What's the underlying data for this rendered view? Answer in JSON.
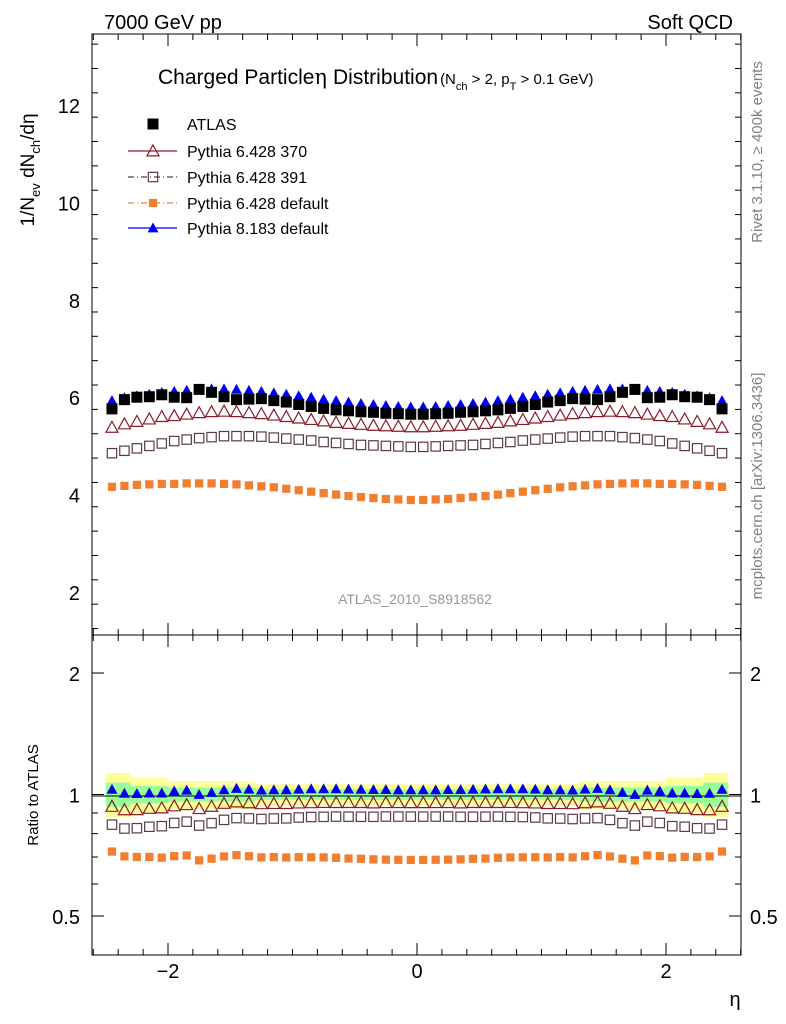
{
  "header": {
    "left": "7000 GeV pp",
    "right": "Soft QCD"
  },
  "chart_data": {
    "type": "scatter",
    "title": "Charged Particle",
    "title_symbol": "η",
    "title_word": "Distribution",
    "title_cuts": {
      "open": "(N",
      "nch_sub": "ch",
      "mid": " > 2, p",
      "pt_sub": "T",
      "close": " > 0.1 GeV)"
    },
    "ylabel": {
      "prefix": "1/N",
      "ev_sub": "ev",
      "mid": " dN",
      "ch_sub": "ch",
      "suffix": "/dη"
    },
    "xlabel": "η",
    "ratio_ylabel": "Ratio to ATLAS",
    "analysis_label": "ATLAS_2010_S8918562",
    "side_label_top": "Rivet 3.1.10, ≥ 400k events",
    "side_label_bottom": "mcplots.cern.ch [arXiv:1306.3436]",
    "xlim": [
      -2.6,
      2.6
    ],
    "ylim": [
      1.2,
      13.6
    ],
    "ratio_ylim": [
      0.35,
      2.3
    ],
    "x_ticks": [
      -2,
      0,
      2
    ],
    "x_tick_labels": [
      "−2",
      "0",
      "2"
    ],
    "y_ticks": [
      2,
      4,
      6,
      8,
      10,
      12
    ],
    "y_tick_labels": [
      "2",
      "4",
      "6",
      "8",
      "10",
      "12"
    ],
    "ratio_ticks": [
      0.5,
      1,
      2
    ],
    "ratio_tick_labels": [
      "0.5",
      "1",
      "2"
    ],
    "legend": [
      "ATLAS",
      "Pythia 6.428 370",
      "Pythia 6.428 391",
      "Pythia 6.428 default",
      "Pythia 8.183 default"
    ],
    "x": [
      -2.45,
      -2.35,
      -2.25,
      -2.15,
      -2.05,
      -1.95,
      -1.85,
      -1.75,
      -1.65,
      -1.55,
      -1.45,
      -1.35,
      -1.25,
      -1.15,
      -1.05,
      -0.95,
      -0.85,
      -0.75,
      -0.65,
      -0.55,
      -0.45,
      -0.35,
      -0.25,
      -0.15,
      -0.05,
      0.05,
      0.15,
      0.25,
      0.35,
      0.45,
      0.55,
      0.65,
      0.75,
      0.85,
      0.95,
      1.05,
      1.15,
      1.25,
      1.35,
      1.45,
      1.55,
      1.65,
      1.75,
      1.85,
      1.95,
      2.05,
      2.15,
      2.25,
      2.35,
      2.45
    ],
    "series": [
      {
        "name": "ATLAS",
        "color": "#000000",
        "marker": "filled-square",
        "values": [
          5.76,
          5.95,
          6.0,
          6.01,
          6.05,
          6.0,
          5.99,
          6.16,
          6.1,
          6.01,
          5.95,
          5.96,
          5.97,
          5.93,
          5.9,
          5.85,
          5.81,
          5.77,
          5.74,
          5.72,
          5.7,
          5.69,
          5.67,
          5.66,
          5.65,
          5.65,
          5.66,
          5.67,
          5.69,
          5.7,
          5.72,
          5.74,
          5.77,
          5.81,
          5.85,
          5.9,
          5.93,
          5.97,
          5.96,
          5.95,
          6.01,
          6.1,
          6.16,
          5.99,
          6.0,
          6.05,
          6.01,
          6.0,
          5.95,
          5.76
        ]
      },
      {
        "name": "Pythia 6.428 370",
        "color": "#8b1a2b",
        "marker": "open-triangle",
        "values": [
          5.38,
          5.45,
          5.5,
          5.55,
          5.6,
          5.62,
          5.65,
          5.68,
          5.7,
          5.71,
          5.7,
          5.68,
          5.66,
          5.63,
          5.6,
          5.57,
          5.54,
          5.51,
          5.48,
          5.46,
          5.44,
          5.42,
          5.41,
          5.4,
          5.39,
          5.39,
          5.4,
          5.41,
          5.42,
          5.44,
          5.46,
          5.48,
          5.51,
          5.54,
          5.57,
          5.6,
          5.63,
          5.66,
          5.68,
          5.7,
          5.71,
          5.7,
          5.68,
          5.65,
          5.62,
          5.6,
          5.55,
          5.5,
          5.45,
          5.38
        ]
      },
      {
        "name": "Pythia 6.428 391",
        "color": "#5a3a4a",
        "marker": "open-square",
        "values": [
          4.85,
          4.9,
          4.95,
          5.0,
          5.05,
          5.1,
          5.13,
          5.16,
          5.18,
          5.2,
          5.2,
          5.2,
          5.19,
          5.17,
          5.15,
          5.13,
          5.11,
          5.08,
          5.06,
          5.04,
          5.02,
          5.01,
          5.0,
          4.99,
          4.98,
          4.98,
          4.99,
          5.0,
          5.01,
          5.02,
          5.04,
          5.06,
          5.08,
          5.11,
          5.13,
          5.15,
          5.17,
          5.19,
          5.2,
          5.2,
          5.2,
          5.18,
          5.16,
          5.13,
          5.1,
          5.05,
          5.0,
          4.95,
          4.9,
          4.85
        ]
      },
      {
        "name": "Pythia 6.428 default",
        "color": "#f08030",
        "marker": "filled-small-square",
        "values": [
          4.16,
          4.18,
          4.2,
          4.21,
          4.22,
          4.22,
          4.23,
          4.23,
          4.23,
          4.22,
          4.21,
          4.19,
          4.17,
          4.15,
          4.12,
          4.09,
          4.06,
          4.03,
          4.0,
          3.97,
          3.95,
          3.93,
          3.91,
          3.9,
          3.89,
          3.89,
          3.9,
          3.91,
          3.93,
          3.95,
          3.97,
          4.0,
          4.03,
          4.06,
          4.09,
          4.12,
          4.15,
          4.17,
          4.19,
          4.21,
          4.22,
          4.23,
          4.23,
          4.23,
          4.22,
          4.22,
          4.21,
          4.2,
          4.18,
          4.16
        ]
      },
      {
        "name": "Pythia 8.183 default",
        "color": "#0000ee",
        "marker": "filled-triangle",
        "values": [
          5.93,
          5.99,
          6.03,
          6.06,
          6.1,
          6.12,
          6.14,
          6.16,
          6.17,
          6.17,
          6.16,
          6.14,
          6.12,
          6.09,
          6.06,
          6.03,
          6.0,
          5.96,
          5.93,
          5.9,
          5.87,
          5.85,
          5.83,
          5.81,
          5.8,
          5.8,
          5.81,
          5.83,
          5.85,
          5.87,
          5.9,
          5.93,
          5.96,
          6.0,
          6.03,
          6.06,
          6.09,
          6.12,
          6.14,
          6.16,
          6.17,
          6.17,
          6.16,
          6.14,
          6.12,
          6.1,
          6.06,
          6.03,
          5.99,
          5.93
        ]
      }
    ],
    "ratio_bands": [
      {
        "x_from": -2.5,
        "x_to": -2.3,
        "yellow": [
          0.88,
          1.13
        ],
        "green": [
          0.93,
          1.07
        ]
      },
      {
        "x_from": -2.3,
        "x_to": -2.0,
        "yellow": [
          0.9,
          1.1
        ],
        "green": [
          0.95,
          1.05
        ]
      },
      {
        "x_from": -2.0,
        "x_to": -1.3,
        "yellow": [
          0.92,
          1.08
        ],
        "green": [
          0.96,
          1.04
        ]
      },
      {
        "x_from": -1.3,
        "x_to": 1.3,
        "yellow": [
          0.94,
          1.06
        ],
        "green": [
          0.97,
          1.03
        ]
      },
      {
        "x_from": 1.3,
        "x_to": 2.0,
        "yellow": [
          0.92,
          1.08
        ],
        "green": [
          0.96,
          1.04
        ]
      },
      {
        "x_from": 2.0,
        "x_to": 2.3,
        "yellow": [
          0.9,
          1.1
        ],
        "green": [
          0.95,
          1.05
        ]
      },
      {
        "x_from": 2.3,
        "x_to": 2.5,
        "yellow": [
          0.88,
          1.13
        ],
        "green": [
          0.93,
          1.07
        ]
      }
    ],
    "band_colors": {
      "yellow": "#ffff99",
      "green": "#99ff99"
    }
  }
}
